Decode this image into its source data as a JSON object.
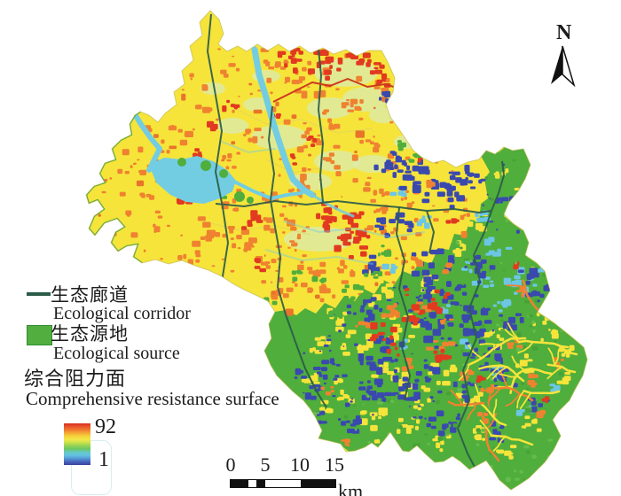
{
  "north_arrow": {
    "label": "N"
  },
  "legend": {
    "corridor": {
      "zh": "生态廊道",
      "en": "Ecological corridor"
    },
    "source": {
      "zh": "生态源地",
      "en": "Ecological source"
    },
    "resistance": {
      "zh": "综合阻力面",
      "en": "Comprehensive resistance surface"
    },
    "ramp": {
      "max_label": "92",
      "min_label": "1",
      "colors": [
        "#d92f21",
        "#e8542a",
        "#f07a2e",
        "#f5a835",
        "#f4d33c",
        "#f3e748",
        "#c9e24c",
        "#92d156",
        "#6ac863",
        "#65c9c3",
        "#62c2e2",
        "#5596d4",
        "#4662bd",
        "#3a3f9e"
      ]
    }
  },
  "scalebar": {
    "ticks": [
      "0",
      "5",
      "10",
      "15"
    ],
    "unit": "km"
  },
  "map_colors": {
    "background": "#ffffff",
    "resistance_low_yellow": "#f6e43b",
    "speckle_orange": "#ef8230",
    "speckle_orange_dark": "#e8742a",
    "speckle_red": "#e13a20",
    "source_green": "#4fae3c",
    "green_dark": "#46a236",
    "green_light": "#64bd4a",
    "mosaic_blue": "#3a49ae",
    "mosaic_cyan": "#6cc6e4",
    "pale_green": "#d9ecb0",
    "water_cyan": "#72cde2",
    "corridor_line": "#2b5c49",
    "road_red": "#cd3a1e",
    "boundary_edge": "#b9b446",
    "west_edge_green": "#45a83a",
    "ink": "#1a1a1a"
  }
}
